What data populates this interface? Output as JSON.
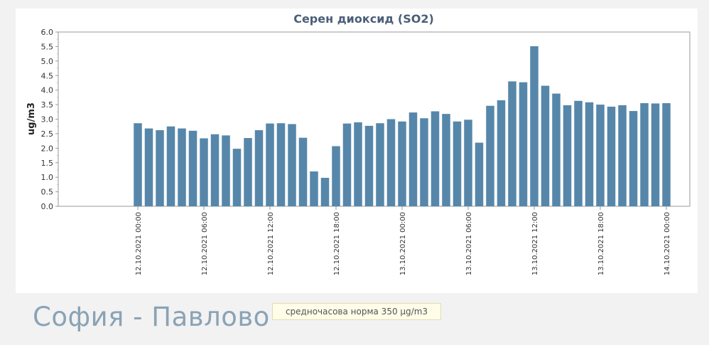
{
  "station": {
    "name": "София - Павлово"
  },
  "norm_note": "средночасова норма 350 µg/m3",
  "colors": {
    "bar": "#5687aa",
    "title": "#4b5e78",
    "panel": "#ffffff",
    "background": "#f2f2f2"
  },
  "chart_data": {
    "type": "bar",
    "title": "Серен диоксид (SO2)",
    "ylabel": "ug/m3",
    "xlabel": "",
    "ylim": [
      0,
      6.0
    ],
    "yticks": [
      "0.0",
      "0.5",
      "1.0",
      "1.5",
      "2.0",
      "2.5",
      "3.0",
      "3.5",
      "4.0",
      "4.5",
      "5.0",
      "5.5",
      "6.0"
    ],
    "xticks": [
      {
        "label": "12.10.2021 00:00",
        "index": 0
      },
      {
        "label": "12.10.2021 06:00",
        "index": 6
      },
      {
        "label": "12.10.2021 12:00",
        "index": 12
      },
      {
        "label": "12.10.2021 18:00",
        "index": 18
      },
      {
        "label": "13.10.2021 00:00",
        "index": 24
      },
      {
        "label": "13.10.2021 06:00",
        "index": 30
      },
      {
        "label": "13.10.2021 12:00",
        "index": 36
      },
      {
        "label": "13.10.2021 18:00",
        "index": 42
      },
      {
        "label": "14.10.2021 00:00",
        "index": 48
      }
    ],
    "grid": false,
    "series": [
      {
        "values": [
          2.86,
          2.68,
          2.62,
          2.75,
          2.68,
          2.6,
          2.34,
          2.48,
          2.44,
          1.98,
          2.35,
          2.62,
          2.85,
          2.86,
          2.83,
          2.36,
          1.2,
          0.98,
          2.07,
          2.85,
          2.89,
          2.77,
          2.86,
          3.0,
          2.92,
          3.23,
          3.03,
          3.27,
          3.18,
          2.92,
          2.98,
          2.19,
          3.46,
          3.65,
          4.3,
          4.27,
          5.51,
          4.15,
          3.88,
          3.48,
          3.63,
          3.58,
          3.5,
          3.43,
          3.48,
          3.28,
          3.55,
          3.54,
          3.55
        ]
      }
    ]
  }
}
